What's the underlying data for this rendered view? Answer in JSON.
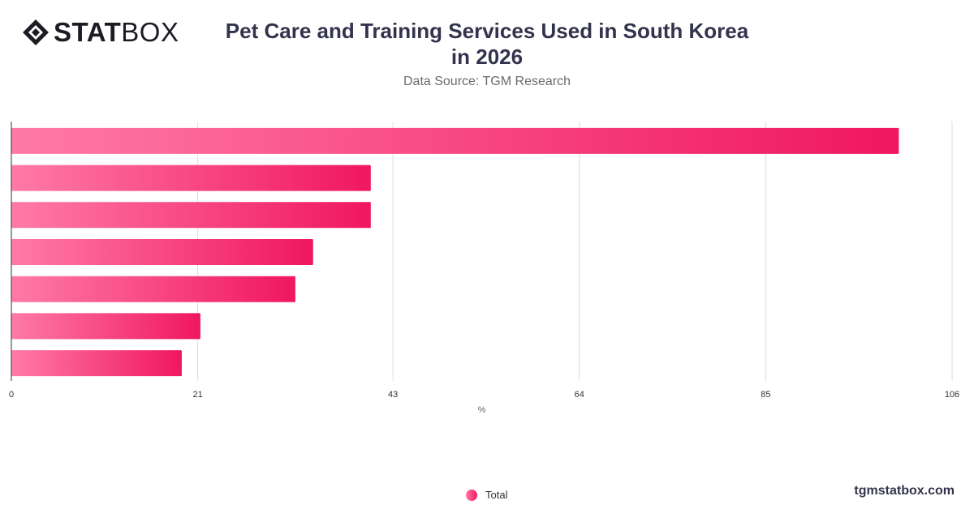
{
  "brand": {
    "logo_bold": "STAT",
    "logo_light": "BOX",
    "watermark": "tgmstatbox.com"
  },
  "colors": {
    "bar_start": "#ff7aa8",
    "bar_end": "#f0175f",
    "grid": "#dddddd",
    "axis": "#333333"
  },
  "chart_data": {
    "type": "bar",
    "orientation": "horizontal",
    "title": "Pet Care and Training Services Used in South Korea in 2026",
    "subtitle": "Data Source: TGM Research",
    "xlabel": "%",
    "ylabel": "",
    "xlim": [
      0,
      106
    ],
    "xticks": [
      0,
      21,
      43,
      64,
      85,
      106
    ],
    "categories": [
      "",
      "",
      "",
      "",
      "",
      "",
      ""
    ],
    "series": [
      {
        "name": "Total",
        "values": [
          100,
          40.5,
          40.5,
          34,
          32,
          21.3,
          19.2
        ]
      }
    ],
    "grid": true,
    "legend_position": "bottom-center"
  }
}
